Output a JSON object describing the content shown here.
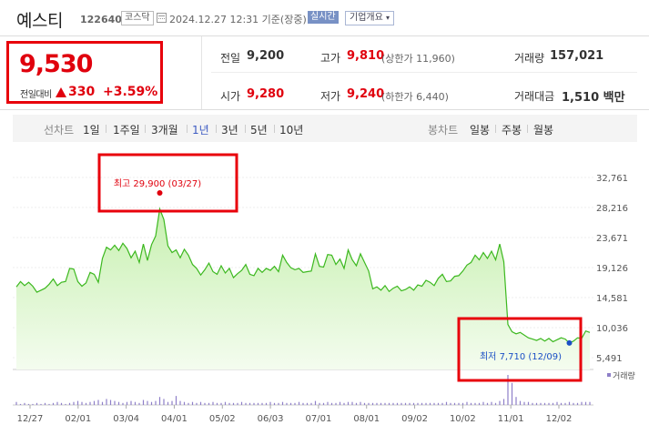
{
  "header": {
    "name": "예스티",
    "code": "122640",
    "market": "코스닥",
    "datetime": "2024.12.27 12:31 기준(장중)",
    "realtime": "실시간",
    "corp_info": "기업개요"
  },
  "quote": {
    "price": "9,530",
    "change_label": "전일대비",
    "change_value": "330",
    "change_pct": "+3.59%"
  },
  "stats": {
    "prev_close_label": "전일",
    "prev_close": "9,200",
    "high_label": "고가",
    "high": "9,810",
    "upper_limit": "(상한가 11,960)",
    "volume_label": "거래량",
    "volume": "157,021",
    "open_label": "시가",
    "open": "9,280",
    "low_label": "저가",
    "low": "9,240",
    "lower_limit": "(하한가 6,440)",
    "amount_label": "거래대금",
    "amount": "1,510 백만"
  },
  "periods": {
    "line_label": "선차트",
    "line_items": [
      "1일",
      "1주일",
      "3개월",
      "1년",
      "3년",
      "5년",
      "10년"
    ],
    "selected": "1년",
    "candle_label": "봉차트",
    "candle_items": [
      "일봉",
      "주봉",
      "월봉"
    ]
  },
  "chart_data": {
    "type": "area",
    "x_ticks": [
      "12/27",
      "02/01",
      "03/04",
      "04/01",
      "05/02",
      "06/03",
      "07/01",
      "08/01",
      "09/02",
      "10/02",
      "11/01",
      "12/02"
    ],
    "y_ticks": [
      "32,761",
      "28,216",
      "23,671",
      "19,126",
      "14,581",
      "10,036",
      "5,491"
    ],
    "ylim": [
      5491,
      32761
    ],
    "high_annotation": "최고 29,900 (03/27)",
    "low_annotation": "최저 7,710 (12/09)",
    "volume_label": "거래량",
    "price_series": [
      16200,
      17000,
      16400,
      16900,
      16300,
      15400,
      15700,
      16000,
      16600,
      17400,
      16400,
      16900,
      17000,
      19000,
      18900,
      17000,
      16300,
      16800,
      18400,
      18100,
      16900,
      20500,
      22200,
      21800,
      22500,
      21700,
      22800,
      22000,
      20600,
      21600,
      19900,
      22700,
      20200,
      22600,
      23900,
      28000,
      26400,
      22400,
      21400,
      21800,
      20600,
      21900,
      21000,
      19600,
      19000,
      18000,
      18800,
      19800,
      18500,
      18100,
      19400,
      18300,
      19000,
      17600,
      18200,
      18700,
      19600,
      18100,
      17900,
      19000,
      18400,
      19000,
      18700,
      19300,
      18500,
      21000,
      19900,
      19100,
      18800,
      19000,
      18400,
      18500,
      18600,
      21200,
      19300,
      19200,
      21100,
      21000,
      19600,
      20400,
      19000,
      21800,
      20300,
      19400,
      21200,
      19900,
      18600,
      15900,
      16200,
      15700,
      16400,
      15500,
      16000,
      16300,
      15600,
      15800,
      16200,
      15700,
      16500,
      16300,
      17200,
      16900,
      16400,
      17500,
      18100,
      17000,
      17100,
      17800,
      17900,
      18600,
      19500,
      19900,
      21000,
      20300,
      21400,
      20500,
      21600,
      20300,
      22700,
      20000,
      10500,
      9400,
      9100,
      9300,
      8900,
      8500,
      8300,
      8100,
      8400,
      8000,
      8400,
      7900,
      8200,
      8500,
      8300,
      7710,
      8000,
      8500,
      8400,
      9530,
      9300
    ],
    "volume_series": [
      3,
      1,
      2,
      1,
      1,
      2,
      1,
      2,
      1,
      2,
      3,
      2,
      1,
      2,
      3,
      4,
      3,
      2,
      3,
      4,
      5,
      3,
      6,
      5,
      4,
      3,
      2,
      3,
      4,
      3,
      2,
      5,
      4,
      3,
      4,
      8,
      6,
      3,
      4,
      9,
      4,
      3,
      2,
      3,
      2,
      3,
      2,
      2,
      3,
      2,
      2,
      3,
      2,
      2,
      2,
      3,
      2,
      2,
      2,
      2,
      2,
      2,
      3,
      2,
      2,
      3,
      2,
      2,
      2,
      3,
      2,
      2,
      2,
      4,
      2,
      2,
      3,
      2,
      2,
      3,
      2,
      3,
      3,
      2,
      3,
      2,
      2,
      2,
      2,
      2,
      2,
      2,
      2,
      2,
      2,
      2,
      2,
      2,
      2,
      2,
      2,
      2,
      2,
      2,
      2,
      3,
      2,
      2,
      2,
      2,
      3,
      2,
      2,
      2,
      3,
      2,
      3,
      2,
      4,
      6,
      30,
      22,
      8,
      4,
      3,
      3,
      2,
      2,
      2,
      2,
      2,
      2,
      3,
      2,
      2,
      3,
      2,
      2,
      3,
      3,
      3
    ],
    "colors": {
      "line": "#3cb81f",
      "fill_top": "#c7f0b0",
      "fill_bottom": "#f4fcef",
      "volume": "#8e7fc8",
      "high": "#e0000d",
      "low": "#1a4fc5"
    }
  }
}
